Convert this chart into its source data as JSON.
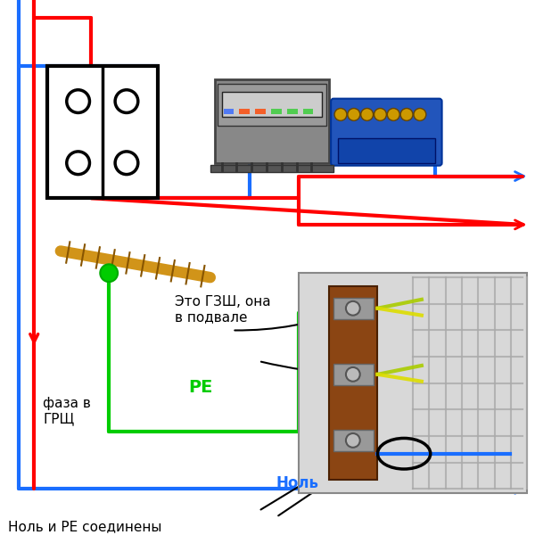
{
  "bg_color": "#ffffff",
  "wire_red": "#ff0000",
  "wire_blue": "#1a6eff",
  "wire_green": "#00cc00",
  "wire_lw": 3.0,
  "text_faza": "фаза в\nГРЩ",
  "text_gzsh": "Это ГЗШ, она\nв подвале",
  "text_pe": "PE",
  "text_nol": "Ноль",
  "text_nol_pe": "Ноль и PE соединены"
}
